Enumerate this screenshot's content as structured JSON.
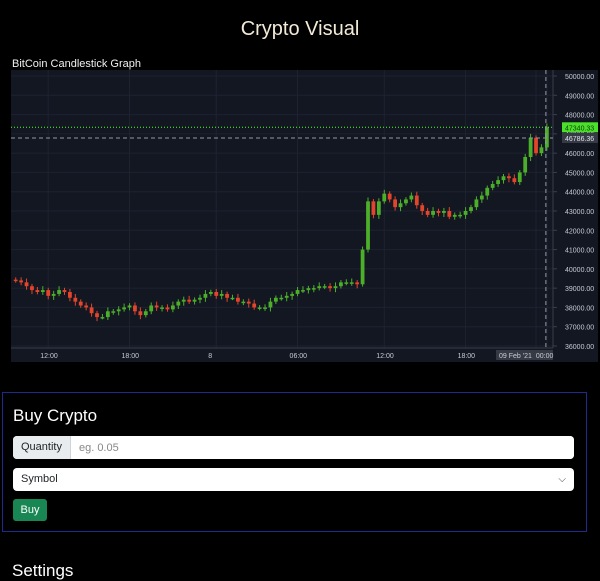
{
  "page": {
    "title": "Crypto Visual"
  },
  "chart": {
    "title": "BitCoin Candlestick Graph",
    "x_tick_labels": [
      "12:00",
      "18:00",
      "8",
      "06:00",
      "12:00",
      "18:00",
      "09 Feb '21",
      "00:00"
    ],
    "price_labels": [
      "50000.00",
      "49000.00",
      "48000.00",
      "47000.00",
      "46000.00",
      "45000.00",
      "44000.00",
      "43000.00",
      "42000.00",
      "41000.00",
      "40000.00",
      "39000.00",
      "38000.00",
      "37000.00",
      "36000.00"
    ],
    "last_price_label": "47340.33",
    "crosshair_price_label": "46786.36",
    "colors": {
      "up": "#4caf2a",
      "down": "#e2452b",
      "background": "#131722",
      "last_price": "#4cff2a"
    }
  },
  "chart_data": {
    "type": "candlestick",
    "title": "BitCoin Candlestick Graph",
    "x_labels": [
      "12:00",
      "18:00",
      "8",
      "06:00",
      "12:00",
      "18:00",
      "09 Feb '21",
      "00:00"
    ],
    "ylim": [
      36000,
      50000
    ],
    "y_ticks": [
      36000,
      37000,
      38000,
      39000,
      40000,
      41000,
      42000,
      43000,
      44000,
      45000,
      46000,
      47000,
      48000,
      49000,
      50000
    ],
    "close": [
      39400,
      39300,
      39100,
      38900,
      38800,
      38900,
      38600,
      38700,
      38900,
      38800,
      38500,
      38300,
      38100,
      38000,
      37700,
      37500,
      37500,
      37800,
      37800,
      37900,
      38000,
      38100,
      37800,
      37600,
      37800,
      38100,
      38000,
      38000,
      37900,
      38100,
      38300,
      38400,
      38300,
      38400,
      38500,
      38700,
      38800,
      38600,
      38700,
      38500,
      38500,
      38300,
      38300,
      38200,
      38000,
      38000,
      38000,
      38300,
      38500,
      38500,
      38600,
      38700,
      38900,
      38900,
      39000,
      39000,
      39100,
      39100,
      39000,
      39100,
      39300,
      39300,
      39300,
      39200,
      41000,
      43500,
      42800,
      43500,
      43900,
      43600,
      43200,
      43400,
      43600,
      43800,
      43300,
      43000,
      42800,
      43000,
      42900,
      43000,
      42700,
      42800,
      42800,
      43000,
      43200,
      43600,
      43800,
      44200,
      44400,
      44600,
      44800,
      44700,
      44500,
      45000,
      45800,
      46800,
      46000,
      46300,
      47340
    ],
    "last_price": 47340.33,
    "crosshair_price": 46786.36
  },
  "form": {
    "title": "Buy Crypto",
    "quantity_label": "Quantity",
    "quantity_placeholder": "eg. 0.05",
    "symbol_value": "Symbol",
    "buy_label": "Buy"
  },
  "settings": {
    "title": "Settings"
  }
}
